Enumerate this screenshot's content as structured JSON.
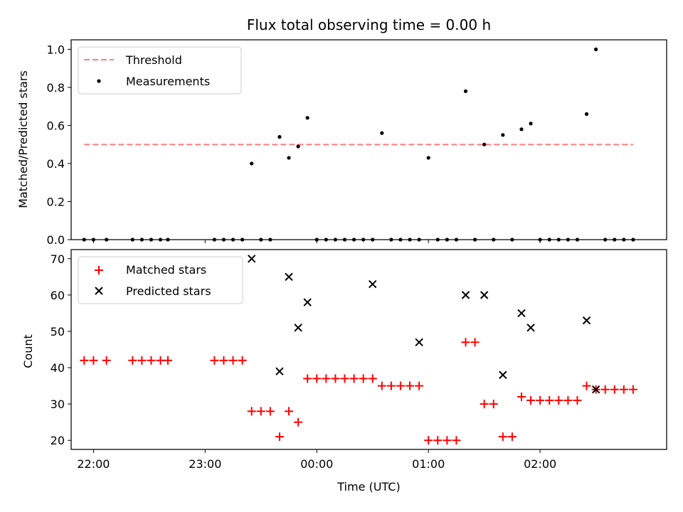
{
  "chart_data": [
    {
      "type": "scatter",
      "title": "Flux total observing time = 0.00 h",
      "xlabel": "",
      "ylabel": "Matched/Predicted stars",
      "xlim": [
        "21:48",
        "03:08"
      ],
      "ylim": [
        0,
        1.05
      ],
      "yticks": [
        "0.0",
        "0.2",
        "0.4",
        "0.6",
        "0.8",
        "1.0"
      ],
      "legend_position": "upper-left",
      "legend": [
        "Threshold",
        "Measurements"
      ],
      "threshold": {
        "name": "Threshold",
        "value": 0.5,
        "x": [
          "21:55",
          "02:50"
        ],
        "color": "#ff7f7f",
        "style": "dashed"
      },
      "series": [
        {
          "name": "Measurements",
          "color": "#000000",
          "x": [
            "21:55",
            "22:00",
            "22:07",
            "22:21",
            "22:26",
            "22:31",
            "22:36",
            "22:40",
            "23:05",
            "23:10",
            "23:15",
            "23:20",
            "23:25",
            "23:30",
            "23:35",
            "23:40",
            "23:45",
            "23:50",
            "23:55",
            "00:00",
            "00:05",
            "00:10",
            "00:15",
            "00:20",
            "00:25",
            "00:30",
            "00:35",
            "00:40",
            "00:45",
            "00:50",
            "00:55",
            "01:00",
            "01:05",
            "01:10",
            "01:15",
            "01:20",
            "01:25",
            "01:30",
            "01:35",
            "01:40",
            "01:45",
            "01:50",
            "01:55",
            "02:00",
            "02:05",
            "02:10",
            "02:15",
            "02:20",
            "02:25",
            "02:30",
            "02:35",
            "02:40",
            "02:45",
            "02:50"
          ],
          "y": [
            0,
            0,
            0,
            0,
            0,
            0,
            0,
            0,
            0,
            0,
            0,
            0,
            0.4,
            0,
            0,
            0.54,
            0.43,
            0.49,
            0.64,
            0,
            0,
            0,
            0,
            0,
            0,
            0,
            0.56,
            0,
            0,
            0,
            0,
            0.43,
            0,
            0,
            0,
            0.78,
            0,
            0.5,
            0,
            0.55,
            0,
            0.58,
            0.61,
            0,
            0,
            0,
            0,
            0,
            0.66,
            1.0,
            0,
            0,
            0,
            0
          ]
        }
      ]
    },
    {
      "type": "scatter",
      "title": "",
      "xlabel": "Time (UTC)",
      "ylabel": "Count",
      "xlim": [
        "21:48",
        "03:08"
      ],
      "ylim": [
        17.5,
        72.5
      ],
      "yticks": [
        "20",
        "30",
        "40",
        "50",
        "60",
        "70"
      ],
      "xticks": [
        "22:00",
        "23:00",
        "00:00",
        "01:00",
        "02:00"
      ],
      "legend_position": "upper-left",
      "legend": [
        "Matched stars",
        "Predicted stars"
      ],
      "series": [
        {
          "name": "Matched stars",
          "marker": "plus",
          "color": "#ff0000",
          "x": [
            "21:55",
            "22:00",
            "22:07",
            "22:21",
            "22:26",
            "22:31",
            "22:36",
            "22:40",
            "23:05",
            "23:10",
            "23:15",
            "23:20",
            "23:25",
            "23:30",
            "23:35",
            "23:40",
            "23:45",
            "23:50",
            "23:55",
            "00:00",
            "00:05",
            "00:10",
            "00:15",
            "00:20",
            "00:25",
            "00:30",
            "00:35",
            "00:40",
            "00:45",
            "00:50",
            "00:55",
            "01:00",
            "01:05",
            "01:10",
            "01:15",
            "01:20",
            "01:25",
            "01:30",
            "01:35",
            "01:40",
            "01:45",
            "01:50",
            "01:55",
            "02:00",
            "02:05",
            "02:10",
            "02:15",
            "02:20",
            "02:25",
            "02:30",
            "02:35",
            "02:40",
            "02:45",
            "02:50"
          ],
          "y": [
            42,
            42,
            42,
            42,
            42,
            42,
            42,
            42,
            42,
            42,
            42,
            42,
            28,
            28,
            28,
            21,
            28,
            25,
            37,
            37,
            37,
            37,
            37,
            37,
            37,
            37,
            35,
            35,
            35,
            35,
            35,
            20,
            20,
            20,
            20,
            47,
            47,
            30,
            30,
            21,
            21,
            32,
            31,
            31,
            31,
            31,
            31,
            31,
            35,
            34,
            34,
            34,
            34,
            34
          ]
        },
        {
          "name": "Predicted stars",
          "marker": "x",
          "color": "#000000",
          "x": [
            "23:25",
            "23:40",
            "23:45",
            "23:50",
            "23:55",
            "00:30",
            "00:55",
            "01:20",
            "01:30",
            "01:40",
            "01:50",
            "01:55",
            "02:25",
            "02:30"
          ],
          "y": [
            70,
            39,
            65,
            51,
            58,
            63,
            47,
            60,
            60,
            38,
            55,
            51,
            53,
            34
          ]
        }
      ]
    }
  ]
}
